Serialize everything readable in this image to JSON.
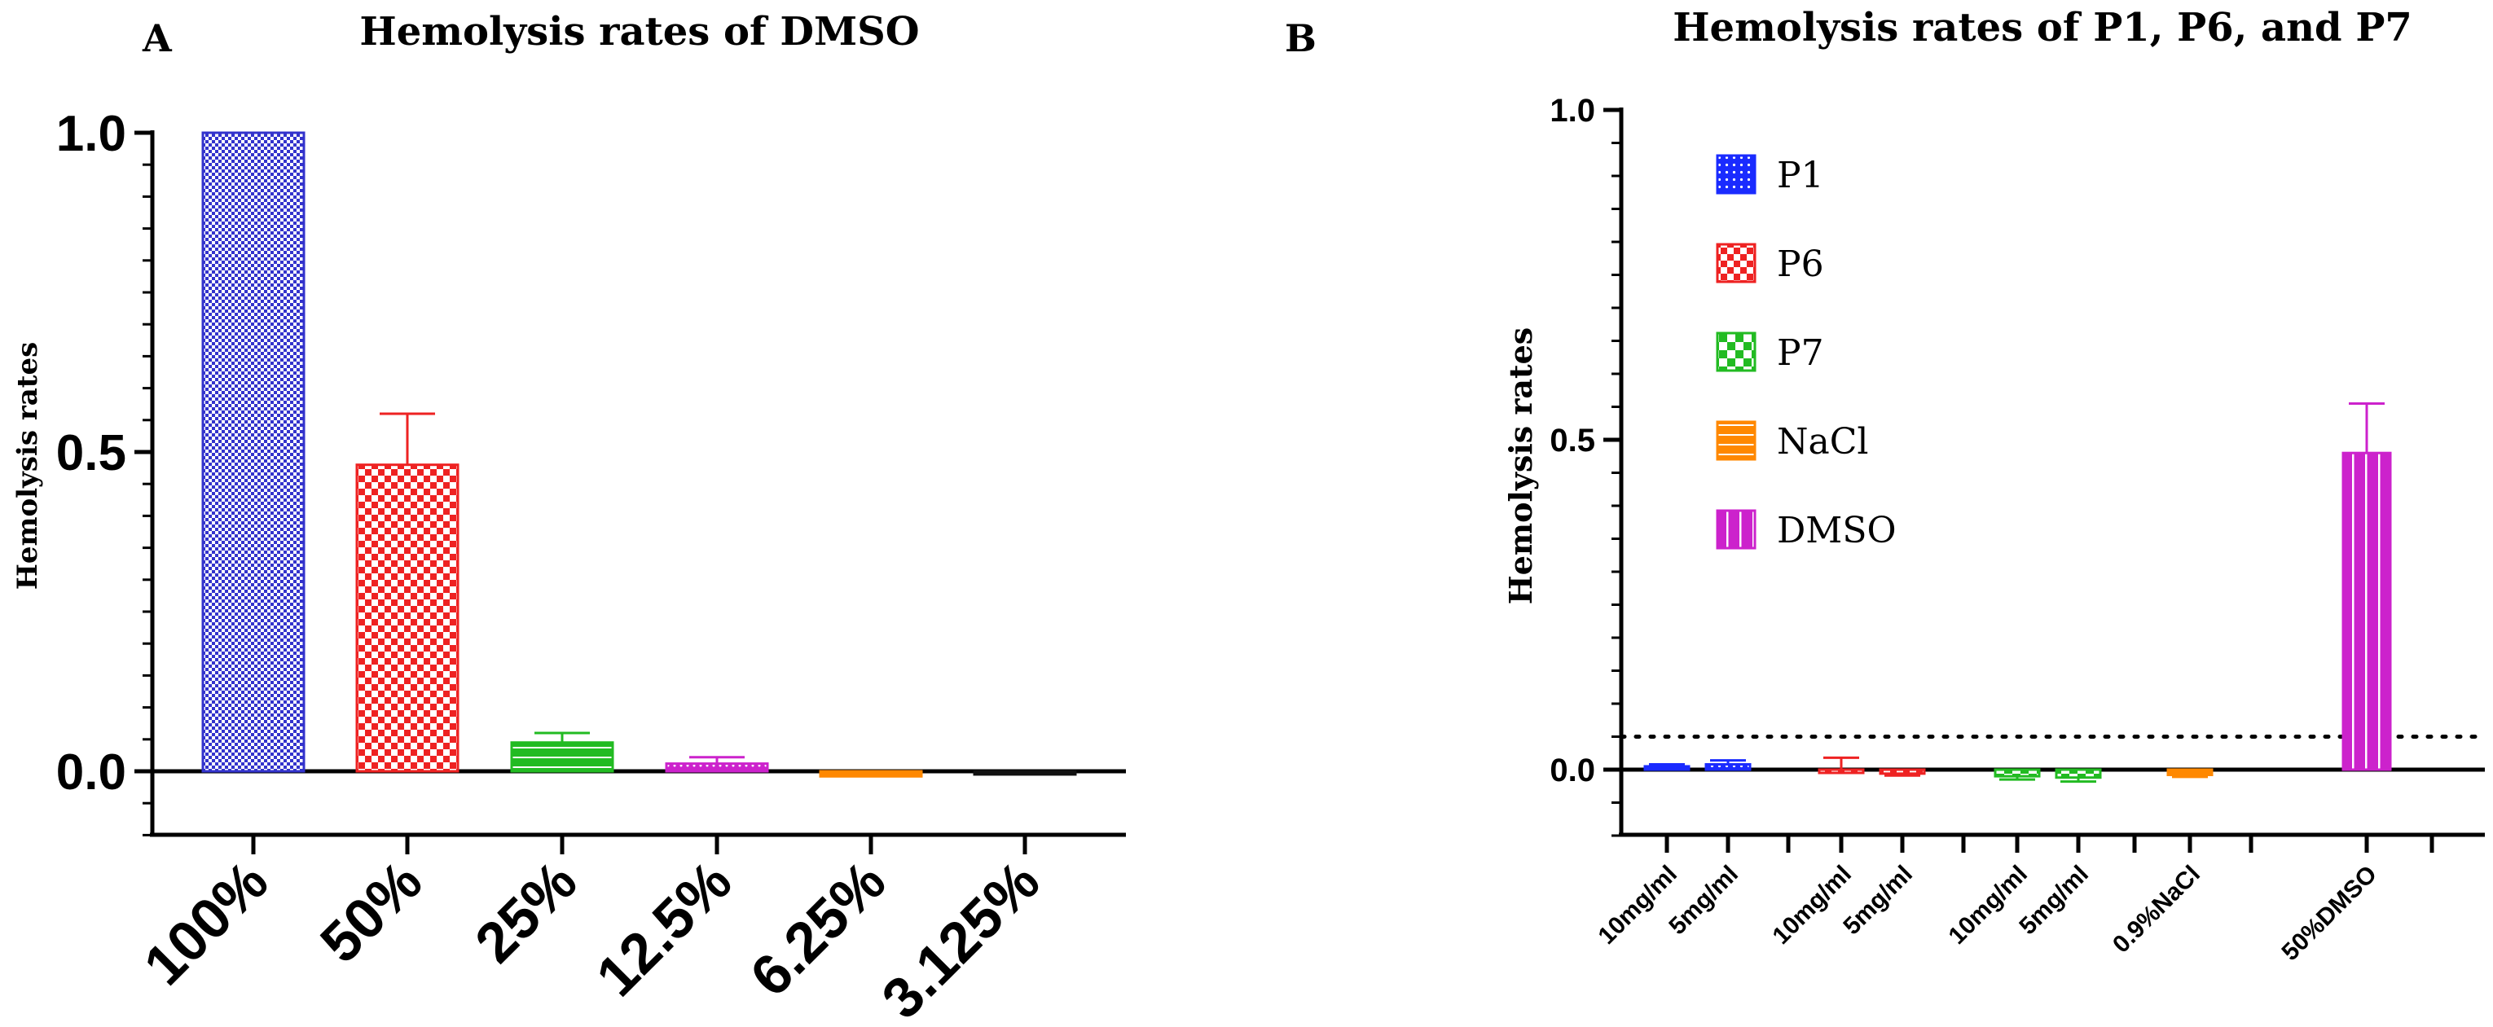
{
  "chart_data": [
    {
      "panel_label": "A",
      "type": "bar",
      "title": "Hemolysis rates of DMSO",
      "ylabel": "Hemolysis rates",
      "xlabel": "",
      "ylim": [
        -0.1,
        1.0
      ],
      "yticks": [
        "0.0",
        "0.5",
        "1.0"
      ],
      "grid": false,
      "categories": [
        "100%",
        "50%",
        "25%",
        "12.5%",
        "6.25%",
        "3.125%"
      ],
      "values": [
        1.0,
        0.48,
        0.045,
        0.012,
        -0.008,
        -0.005
      ],
      "errors": [
        0,
        0.08,
        0.015,
        0.01,
        0.003,
        0.002
      ],
      "colors": [
        "#3333cc",
        "#ee2222",
        "#22bb22",
        "#cc22cc",
        "#ff8800",
        "#111111"
      ],
      "patterns": [
        "dense-check",
        "check",
        "hlines",
        "dots",
        "hlines",
        "solid"
      ]
    },
    {
      "panel_label": "B",
      "type": "bar",
      "title": "Hemolysis rates of P1, P6, and P7",
      "ylabel": "Hemolysis rates",
      "xlabel": "",
      "ylim": [
        -0.1,
        1.0
      ],
      "yticks": [
        "0.0",
        "0.5",
        "1.0"
      ],
      "grid": false,
      "threshold": 0.05,
      "legend_position": "top-left",
      "series": [
        {
          "name": "P1",
          "color": "#1a2bff",
          "pattern": "dots"
        },
        {
          "name": "P6",
          "color": "#ee2222",
          "pattern": "check"
        },
        {
          "name": "P7",
          "color": "#22bb22",
          "pattern": "bigcheck"
        },
        {
          "name": "NaCl",
          "color": "#ff8800",
          "pattern": "hlines"
        },
        {
          "name": "DMSO",
          "color": "#cc22cc",
          "pattern": "vlines"
        }
      ],
      "categories": [
        "10mg/ml",
        "5mg/ml",
        "10mg/ml",
        "5mg/ml",
        "10mg/ml",
        "5mg/ml",
        "0.9%NaCl",
        "50%DMSO"
      ],
      "bars": [
        {
          "series": "P1",
          "value": 0.005,
          "error": 0.003
        },
        {
          "series": "P1",
          "value": 0.008,
          "error": 0.006
        },
        {
          "series": "P6",
          "value": 0.0,
          "error": 0.018
        },
        {
          "series": "P6",
          "value": -0.006,
          "error": 0.003
        },
        {
          "series": "P7",
          "value": -0.01,
          "error": 0.005
        },
        {
          "series": "P7",
          "value": -0.012,
          "error": 0.006
        },
        {
          "series": "NaCl",
          "value": -0.008,
          "error": 0.003
        },
        {
          "series": "DMSO",
          "value": 0.48,
          "error": 0.075
        }
      ]
    }
  ]
}
